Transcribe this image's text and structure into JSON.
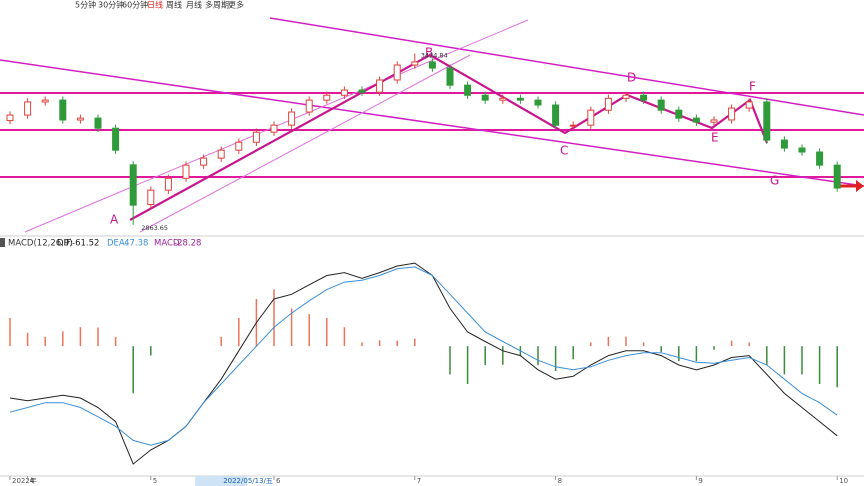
{
  "toolbar": {
    "items": [
      "5分钟",
      "30分钟",
      "60分钟",
      "日线",
      "周线",
      "月线",
      "多周期",
      "更多"
    ],
    "active": 3
  },
  "chart_data": [
    {
      "type": "candlestick",
      "up_color": "#e0413a",
      "down_color": "#2e9a3a",
      "ylim": [
        2840,
        3600
      ],
      "open": [
        3205,
        3223,
        3266,
        3272,
        3207,
        3213,
        3180,
        3060,
        2930,
        2977,
        3016,
        3059,
        3082,
        3108,
        3134,
        3167,
        3190,
        3233,
        3272,
        3288,
        3305,
        3298,
        3338,
        3387,
        3397,
        3377,
        3321,
        3288,
        3272,
        3278,
        3272,
        3256,
        3190,
        3190,
        3239,
        3278,
        3288,
        3272,
        3239,
        3213,
        3200,
        3207,
        3246,
        3266,
        3141,
        3115,
        3102,
        3059
      ],
      "high": [
        3235,
        3278,
        3284,
        3284,
        3225,
        3225,
        3192,
        3072,
        2989,
        3028,
        3071,
        3094,
        3120,
        3146,
        3179,
        3202,
        3245,
        3284,
        3300,
        3317,
        3317,
        3350,
        3399,
        3424.84,
        3409,
        3389,
        3333,
        3300,
        3290,
        3290,
        3284,
        3268,
        3202,
        3251,
        3290,
        3300,
        3300,
        3284,
        3251,
        3225,
        3219,
        3258,
        3278,
        3278,
        3153,
        3127,
        3114,
        3071
      ],
      "low": [
        3193,
        3211,
        3254,
        3195,
        3195,
        3168,
        3096,
        2863.65,
        2918,
        2965,
        3004,
        3047,
        3070,
        3096,
        3122,
        3155,
        3178,
        3221,
        3260,
        3276,
        3286,
        3286,
        3326,
        3375,
        3365,
        3309,
        3276,
        3260,
        3260,
        3260,
        3244,
        3178,
        3178,
        3178,
        3227,
        3266,
        3260,
        3227,
        3201,
        3188,
        3188,
        3195,
        3234,
        3129,
        3103,
        3090,
        3047,
        2972
      ],
      "close": [
        3223,
        3266,
        3272,
        3207,
        3213,
        3180,
        3108,
        2928,
        2977,
        3016,
        3059,
        3082,
        3108,
        3134,
        3167,
        3190,
        3233,
        3272,
        3288,
        3305,
        3298,
        3338,
        3387,
        3397,
        3377,
        3321,
        3288,
        3272,
        3278,
        3272,
        3256,
        3190,
        3190,
        3239,
        3278,
        3288,
        3272,
        3239,
        3213,
        3200,
        3207,
        3246,
        3266,
        3141,
        3115,
        3102,
        3059,
        2984
      ],
      "annotations": [
        "A",
        "B",
        "C",
        "D",
        "E",
        "F",
        "G"
      ]
    },
    {
      "type": "macd",
      "title": "MACD(12,26,9)",
      "ylim": [
        -85,
        66
      ],
      "series": [
        {
          "name": "DIF:",
          "color": "#222222",
          "values": [
            -35.6,
            -37.5,
            -35.6,
            -33.7,
            -35.6,
            -42.1,
            -51.8,
            -80.9,
            -71.2,
            -64.7,
            -55.0,
            -38.8,
            -22.7,
            -3.2,
            16.2,
            32.4,
            35.6,
            42.1,
            48.5,
            50.5,
            46.6,
            50.5,
            55.0,
            57.0,
            48.5,
            25.9,
            9.7,
            3.2,
            -3.2,
            -6.5,
            -16.2,
            -22.7,
            -20.7,
            -12.9,
            -6.5,
            -3.2,
            -3.2,
            -6.5,
            -12.9,
            -16.2,
            -12.9,
            -7.8,
            -6.5,
            -19.4,
            -32.4,
            -42.1,
            -51.8,
            -61.52
          ]
        },
        {
          "name": "DEA:",
          "color": "#3a8fd9",
          "values": [
            -45.3,
            -42.1,
            -38.8,
            -38.8,
            -42.1,
            -48.5,
            -55.0,
            -64.7,
            -68.0,
            -64.7,
            -55.0,
            -38.8,
            -25.9,
            -12.9,
            0,
            12.9,
            22.7,
            31.1,
            38.8,
            44.0,
            45.3,
            48.5,
            53.1,
            54.4,
            48.5,
            35.6,
            22.7,
            9.7,
            3.2,
            -3.2,
            -9.7,
            -14.2,
            -16.2,
            -14.2,
            -9.7,
            -6.5,
            -4.5,
            -4.5,
            -7.8,
            -11.0,
            -11.7,
            -9.7,
            -7.8,
            -12.9,
            -22.7,
            -32.4,
            -38.8,
            -47.38
          ]
        }
      ],
      "histogram": {
        "name": "MACD:",
        "color": "#a0209f",
        "up_color": "#e8755a",
        "down_color": "#3c8a3c",
        "values": [
          19.4,
          9.2,
          6.4,
          10.2,
          13.0,
          12.8,
          6.4,
          -32.4,
          -6.4,
          0,
          0,
          0,
          6.4,
          19.4,
          32.4,
          39.0,
          25.8,
          22.0,
          19.4,
          13.0,
          2.6,
          4.0,
          3.8,
          5.2,
          0,
          -19.4,
          -26.0,
          -13.0,
          -12.8,
          -6.6,
          -13.0,
          -17.0,
          -9.0,
          2.6,
          6.4,
          6.6,
          2.6,
          -4.0,
          -10.2,
          -10.4,
          -2.4,
          3.8,
          2.6,
          -13.0,
          -19.4,
          -19.4,
          -26.0,
          -28.28
        ]
      },
      "xticks": [
        {
          "value": 0,
          "label": "2022年"
        },
        {
          "value": 1,
          "label": "4"
        },
        {
          "value": 8,
          "label": "5"
        },
        {
          "value": 12,
          "label": "2022/05/13/五"
        },
        {
          "value": 15,
          "label": "6"
        },
        {
          "value": 23,
          "label": "7"
        },
        {
          "value": 31,
          "label": "8"
        },
        {
          "value": 39,
          "label": "9"
        },
        {
          "value": 47,
          "label": "10"
        }
      ],
      "highlight_tick": 3
    }
  ]
}
